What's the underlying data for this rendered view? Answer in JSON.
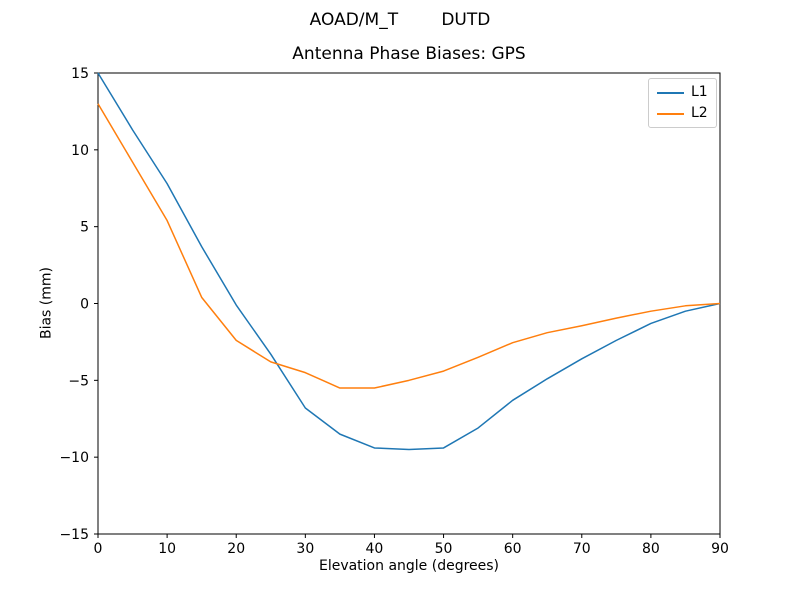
{
  "chart_data": {
    "type": "line",
    "suptitle": "AOAD/M_T        DUTD",
    "title": "Antenna Phase Biases: GPS",
    "xlabel": "Elevation angle (degrees)",
    "ylabel": "Bias (mm)",
    "xlim": [
      0,
      90
    ],
    "ylim": [
      -15,
      15
    ],
    "x_ticks": [
      0,
      10,
      20,
      30,
      40,
      50,
      60,
      70,
      80,
      90
    ],
    "y_ticks": [
      -15,
      -10,
      -5,
      0,
      5,
      10,
      15
    ],
    "grid": false,
    "legend_position": "upper right",
    "axis_color": "#000000",
    "x": [
      0,
      5,
      10,
      15,
      20,
      25,
      30,
      35,
      40,
      45,
      50,
      55,
      60,
      65,
      70,
      75,
      80,
      85,
      90
    ],
    "series": [
      {
        "name": "L1",
        "color": "#1f77b4",
        "values": [
          15.0,
          11.3,
          7.8,
          3.7,
          -0.1,
          -3.3,
          -6.8,
          -8.5,
          -9.4,
          -9.5,
          -9.4,
          -8.1,
          -6.3,
          -4.9,
          -3.6,
          -2.4,
          -1.3,
          -0.5,
          0.0
        ]
      },
      {
        "name": "L2",
        "color": "#ff7f0e",
        "values": [
          13.0,
          9.2,
          5.4,
          0.4,
          -2.4,
          -3.8,
          -4.5,
          -5.5,
          -5.5,
          -5.0,
          -4.4,
          -3.5,
          -2.55,
          -1.9,
          -1.45,
          -0.95,
          -0.5,
          -0.15,
          0.0
        ]
      }
    ]
  }
}
